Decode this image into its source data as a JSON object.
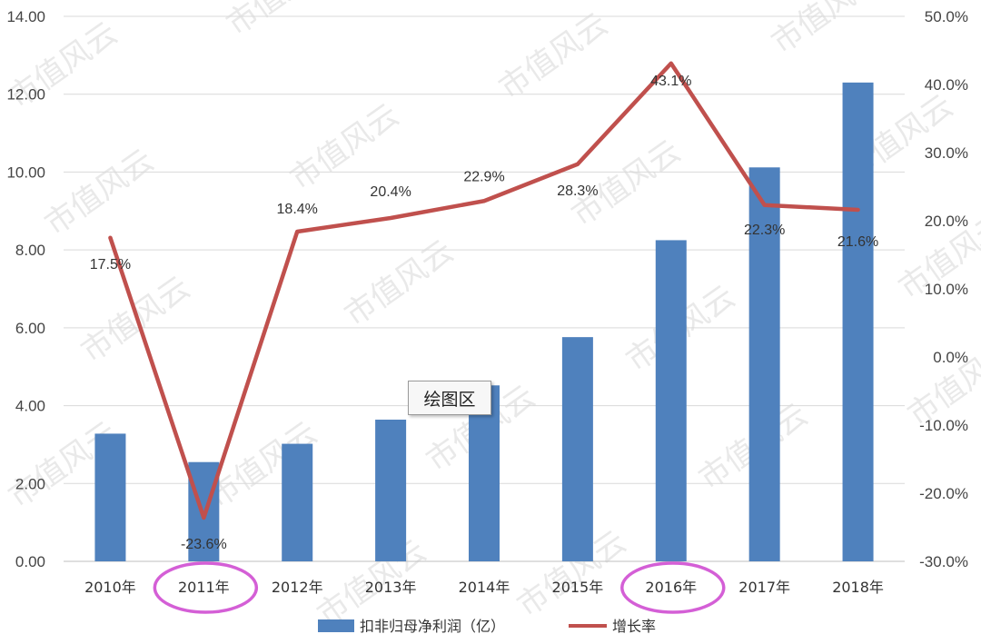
{
  "chart_data": {
    "type": "bar",
    "categories": [
      "2010年",
      "2011年",
      "2012年",
      "2013年",
      "2014年",
      "2015年",
      "2016年",
      "2017年",
      "2018年"
    ],
    "series": [
      {
        "name": "扣非归母净利润（亿）",
        "type": "bar",
        "axis": "left",
        "values": [
          3.28,
          2.55,
          3.02,
          3.64,
          4.52,
          5.76,
          8.25,
          10.12,
          12.3
        ]
      },
      {
        "name": "增长率",
        "type": "line",
        "axis": "right",
        "values": [
          17.5,
          -23.6,
          18.4,
          20.4,
          22.9,
          28.3,
          43.1,
          22.3,
          21.6
        ],
        "labels": [
          "17.5%",
          "-23.6%",
          "18.4%",
          "20.4%",
          "22.9%",
          "28.3%",
          "43.1%",
          "22.3%",
          "21.6%"
        ]
      }
    ],
    "y_left": {
      "lim": [
        0,
        14
      ],
      "ticks": [
        "0.00",
        "2.00",
        "4.00",
        "6.00",
        "8.00",
        "10.00",
        "12.00",
        "14.00"
      ]
    },
    "y_right": {
      "lim": [
        -30,
        50
      ],
      "ticks": [
        "-30.0%",
        "-20.0%",
        "-10.0%",
        "0.0%",
        "10.0%",
        "20.0%",
        "30.0%",
        "40.0%",
        "50.0%"
      ]
    },
    "highlighted_categories": [
      "2011年",
      "2016年"
    ],
    "grid": true,
    "legend_position": "bottom",
    "colors": {
      "bar": "#4f81bd",
      "line": "#c0504d",
      "highlight": "#d45fd6",
      "grid": "#d9d9d9"
    }
  },
  "tooltip": {
    "label": "绘图区"
  },
  "watermark": {
    "text": "市值风云"
  }
}
